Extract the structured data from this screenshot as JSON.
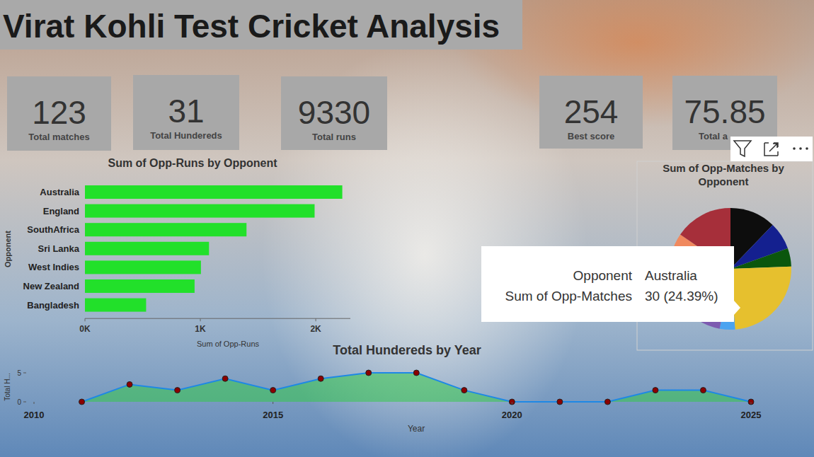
{
  "title": "Virat Kohli Test Cricket Analysis",
  "kpis": [
    {
      "value": 123,
      "label": "Total matches"
    },
    {
      "value": 31,
      "label": "Total Hundereds"
    },
    {
      "value": 9330,
      "label": "Total runs"
    },
    {
      "value": 254,
      "label": "Best score"
    },
    {
      "value": 75.85,
      "label": "Total a"
    }
  ],
  "chart_data": [
    {
      "type": "bar",
      "title": "Sum of Opp-Runs by Opponent",
      "orientation": "horizontal",
      "categories": [
        "Australia",
        "England",
        "SouthAfrica",
        "Sri Lanka",
        "West Indies",
        "New Zealand",
        "Bangladesh"
      ],
      "values": [
        2230,
        1990,
        1400,
        1075,
        1005,
        950,
        530
      ],
      "color": "#22e02a",
      "x_label": "Sum of Opp-Runs",
      "y_label": "Opponent",
      "xlim": [
        0,
        2300
      ],
      "xticks": [
        {
          "value": 0,
          "label": "0K"
        },
        {
          "value": 1000,
          "label": "1K"
        },
        {
          "value": 2000,
          "label": "2K"
        }
      ]
    },
    {
      "type": "pie",
      "title": "Sum of Opp-Matches by Opponent",
      "categories": [
        null,
        null,
        null,
        "Australia",
        null,
        null,
        null,
        null
      ],
      "values": [
        15,
        9,
        6,
        30,
        5,
        32,
        7,
        19
      ],
      "value_labels": [
        null,
        null,
        null,
        "30 (24.39%)",
        null,
        null,
        null,
        null
      ],
      "colors": [
        "#0d0d0d",
        "#14208f",
        "#0b560d",
        "#e6c02e",
        "#4aa3f0",
        "#7d5bb0",
        "#f0895e",
        "#a62f3a"
      ],
      "tooltip": {
        "category_title": "Opponent",
        "value_title": "Sum of Opp-Matches"
      }
    },
    {
      "type": "area",
      "title": "Total Hundereds by Year",
      "x": [
        2011,
        2012,
        2013,
        2014,
        2015,
        2016,
        2017,
        2018,
        2019,
        2020,
        2021,
        2022,
        2023,
        2024,
        2025
      ],
      "values": [
        0,
        3,
        2,
        4,
        2,
        4,
        5,
        5,
        2,
        0,
        0,
        0,
        2,
        2,
        0
      ],
      "color": "#1e88e5",
      "marker": "circle",
      "x_label": "Year",
      "y_label": "Total H...",
      "xlim": [
        2010,
        2025
      ],
      "xticks": [
        2010,
        2015,
        2020,
        2025
      ],
      "ylim": [
        0,
        5
      ],
      "yticks": [
        0,
        5
      ]
    }
  ]
}
